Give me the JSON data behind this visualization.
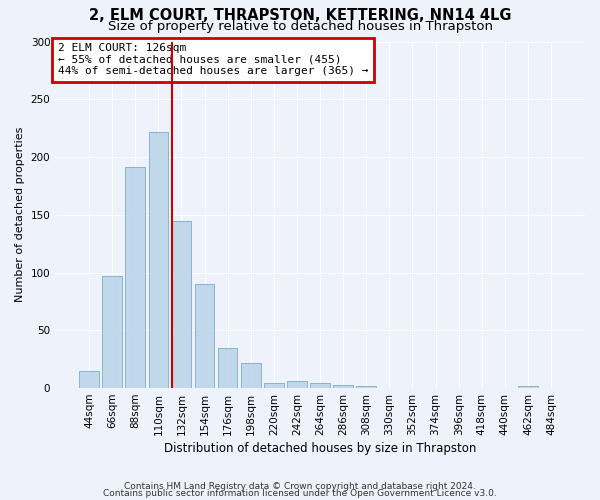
{
  "title1": "2, ELM COURT, THRAPSTON, KETTERING, NN14 4LG",
  "title2": "Size of property relative to detached houses in Thrapston",
  "xlabel": "Distribution of detached houses by size in Thrapston",
  "ylabel": "Number of detached properties",
  "categories": [
    "44sqm",
    "66sqm",
    "88sqm",
    "110sqm",
    "132sqm",
    "154sqm",
    "176sqm",
    "198sqm",
    "220sqm",
    "242sqm",
    "264sqm",
    "286sqm",
    "308sqm",
    "330sqm",
    "352sqm",
    "374sqm",
    "396sqm",
    "418sqm",
    "440sqm",
    "462sqm",
    "484sqm"
  ],
  "values": [
    15,
    97,
    191,
    222,
    145,
    90,
    35,
    22,
    4,
    6,
    4,
    3,
    2,
    0,
    0,
    0,
    0,
    0,
    0,
    2,
    0
  ],
  "bar_color": "#b8d4e8",
  "bar_edgecolor": "#7aaac8",
  "bar_alpha": 0.85,
  "vline_color": "#cc0000",
  "annotation_title": "2 ELM COURT: 126sqm",
  "annotation_line1": "← 55% of detached houses are smaller (455)",
  "annotation_line2": "44% of semi-detached houses are larger (365) →",
  "annotation_box_color": "#cc0000",
  "ylim": [
    0,
    300
  ],
  "yticks": [
    0,
    50,
    100,
    150,
    200,
    250,
    300
  ],
  "footer1": "Contains HM Land Registry data © Crown copyright and database right 2024.",
  "footer2": "Contains public sector information licensed under the Open Government Licence v3.0.",
  "bg_color": "#eef2fb",
  "grid_color": "#ffffff",
  "title_fontsize": 10.5,
  "subtitle_fontsize": 9.5,
  "axis_label_fontsize": 8,
  "tick_fontsize": 7.5,
  "footer_fontsize": 6.5,
  "annotation_fontsize": 8
}
